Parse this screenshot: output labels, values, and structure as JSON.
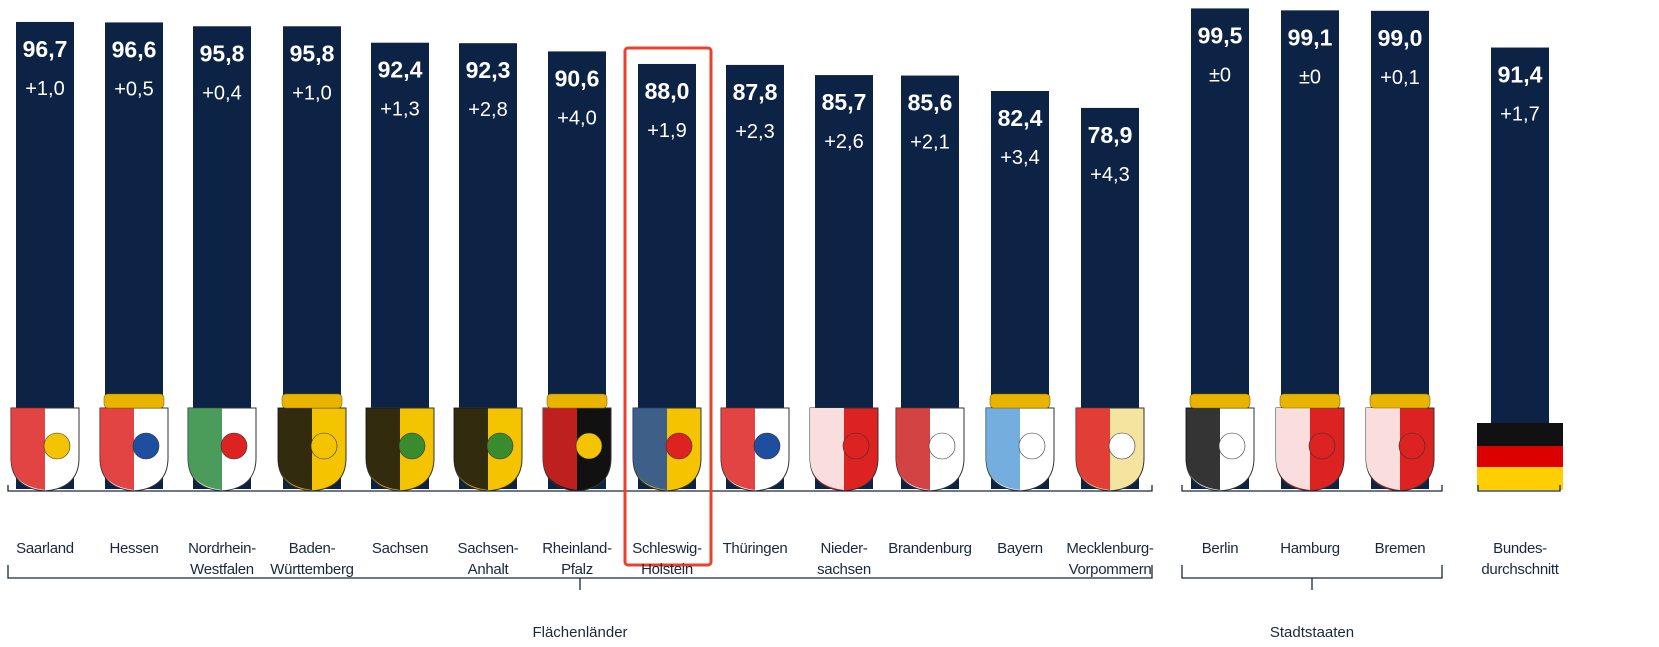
{
  "chart_data": {
    "type": "bar",
    "categories": [
      "Saarland",
      "Hessen",
      "Nordrhein-\nWestfalen",
      "Baden-\nWürttemberg",
      "Sachsen",
      "Sachsen-\nAnhalt",
      "Rheinland-\nPfalz",
      "Schleswig-\nHolstein",
      "Thüringen",
      "Nieder-\nsachsen",
      "Brandenburg",
      "Bayern",
      "Mecklenburg-\nVorpommern",
      "Berlin",
      "Hamburg",
      "Bremen",
      "Bundes-\ndurchschnitt"
    ],
    "values": [
      96.7,
      96.6,
      95.8,
      95.8,
      92.4,
      92.3,
      90.6,
      88.0,
      87.8,
      85.7,
      85.6,
      82.4,
      78.9,
      99.5,
      99.1,
      99.0,
      91.4
    ],
    "value_labels": [
      "96,7",
      "96,6",
      "95,8",
      "95,8",
      "92,4",
      "92,3",
      "90,6",
      "88,0",
      "87,8",
      "85,7",
      "85,6",
      "82,4",
      "78,9",
      "99,5",
      "99,1",
      "99,0",
      "91,4"
    ],
    "changes": [
      "+1,0",
      "+0,5",
      "+0,4",
      "+1,0",
      "+1,3",
      "+2,8",
      "+4,0",
      "+1,9",
      "+2,3",
      "+2,6",
      "+2,1",
      "+3,4",
      "+4,3",
      "±0",
      "±0",
      "+0,1",
      "+1,7"
    ],
    "groups": [
      "Flächenländer",
      "Stadtstaaten"
    ],
    "color": "#0d2346",
    "highlight_color": "#e8412c",
    "ylim": [
      0,
      100
    ]
  }
}
